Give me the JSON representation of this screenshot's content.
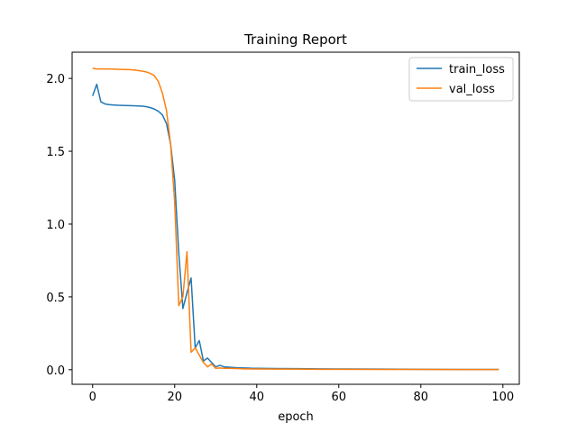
{
  "chart_data": {
    "type": "line",
    "title": "Training Report",
    "xlabel": "epoch",
    "ylabel": "",
    "xlim": [
      -5,
      104
    ],
    "ylim": [
      -0.1,
      2.18
    ],
    "xticks": [
      0,
      20,
      40,
      60,
      80,
      100
    ],
    "yticks": [
      0.0,
      0.5,
      1.0,
      1.5,
      2.0
    ],
    "xtick_labels": [
      "0",
      "20",
      "40",
      "60",
      "80",
      "100"
    ],
    "ytick_labels": [
      "0.0",
      "0.5",
      "1.0",
      "1.5",
      "2.0"
    ],
    "grid": false,
    "legend_position": "upper right",
    "series": [
      {
        "name": "train_loss",
        "color": "#1f77b4",
        "points": [
          [
            0,
            1.88
          ],
          [
            1,
            1.96
          ],
          [
            2,
            1.84
          ],
          [
            3,
            1.825
          ],
          [
            4,
            1.82
          ],
          [
            5,
            1.818
          ],
          [
            6,
            1.816
          ],
          [
            7,
            1.815
          ],
          [
            8,
            1.814
          ],
          [
            9,
            1.813
          ],
          [
            10,
            1.812
          ],
          [
            11,
            1.811
          ],
          [
            12,
            1.81
          ],
          [
            13,
            1.806
          ],
          [
            14,
            1.8
          ],
          [
            15,
            1.79
          ],
          [
            16,
            1.775
          ],
          [
            17,
            1.75
          ],
          [
            18,
            1.69
          ],
          [
            19,
            1.55
          ],
          [
            20,
            1.3
          ],
          [
            21,
            0.8
          ],
          [
            22,
            0.42
          ],
          [
            23,
            0.53
          ],
          [
            24,
            0.63
          ],
          [
            25,
            0.15
          ],
          [
            26,
            0.2
          ],
          [
            27,
            0.06
          ],
          [
            28,
            0.08
          ],
          [
            29,
            0.05
          ],
          [
            30,
            0.02
          ],
          [
            31,
            0.03
          ],
          [
            32,
            0.02
          ],
          [
            33,
            0.018
          ],
          [
            34,
            0.016
          ],
          [
            35,
            0.014
          ],
          [
            36,
            0.013
          ],
          [
            37,
            0.012
          ],
          [
            38,
            0.011
          ],
          [
            39,
            0.01
          ],
          [
            40,
            0.01
          ],
          [
            45,
            0.008
          ],
          [
            50,
            0.007
          ],
          [
            55,
            0.006
          ],
          [
            60,
            0.005
          ],
          [
            70,
            0.004
          ],
          [
            80,
            0.003
          ],
          [
            90,
            0.002
          ],
          [
            99,
            0.002
          ]
        ]
      },
      {
        "name": "val_loss",
        "color": "#ff7f0e",
        "points": [
          [
            0,
            2.07
          ],
          [
            1,
            2.065
          ],
          [
            2,
            2.065
          ],
          [
            3,
            2.065
          ],
          [
            4,
            2.065
          ],
          [
            5,
            2.064
          ],
          [
            6,
            2.063
          ],
          [
            7,
            2.062
          ],
          [
            8,
            2.061
          ],
          [
            9,
            2.06
          ],
          [
            10,
            2.058
          ],
          [
            11,
            2.055
          ],
          [
            12,
            2.05
          ],
          [
            13,
            2.045
          ],
          [
            14,
            2.035
          ],
          [
            15,
            2.02
          ],
          [
            16,
            1.98
          ],
          [
            17,
            1.9
          ],
          [
            18,
            1.78
          ],
          [
            19,
            1.55
          ],
          [
            20,
            1.15
          ],
          [
            21,
            0.44
          ],
          [
            22,
            0.5
          ],
          [
            23,
            0.81
          ],
          [
            24,
            0.12
          ],
          [
            25,
            0.15
          ],
          [
            26,
            0.1
          ],
          [
            27,
            0.05
          ],
          [
            28,
            0.02
          ],
          [
            29,
            0.04
          ],
          [
            30,
            0.01
          ],
          [
            31,
            0.012
          ],
          [
            32,
            0.01
          ],
          [
            33,
            0.01
          ],
          [
            34,
            0.009
          ],
          [
            35,
            0.008
          ],
          [
            36,
            0.007
          ],
          [
            37,
            0.006
          ],
          [
            38,
            0.006
          ],
          [
            39,
            0.005
          ],
          [
            40,
            0.005
          ],
          [
            45,
            0.004
          ],
          [
            50,
            0.004
          ],
          [
            55,
            0.003
          ],
          [
            60,
            0.003
          ],
          [
            70,
            0.002
          ],
          [
            80,
            0.002
          ],
          [
            90,
            0.001
          ],
          [
            99,
            0.001
          ]
        ]
      }
    ]
  }
}
